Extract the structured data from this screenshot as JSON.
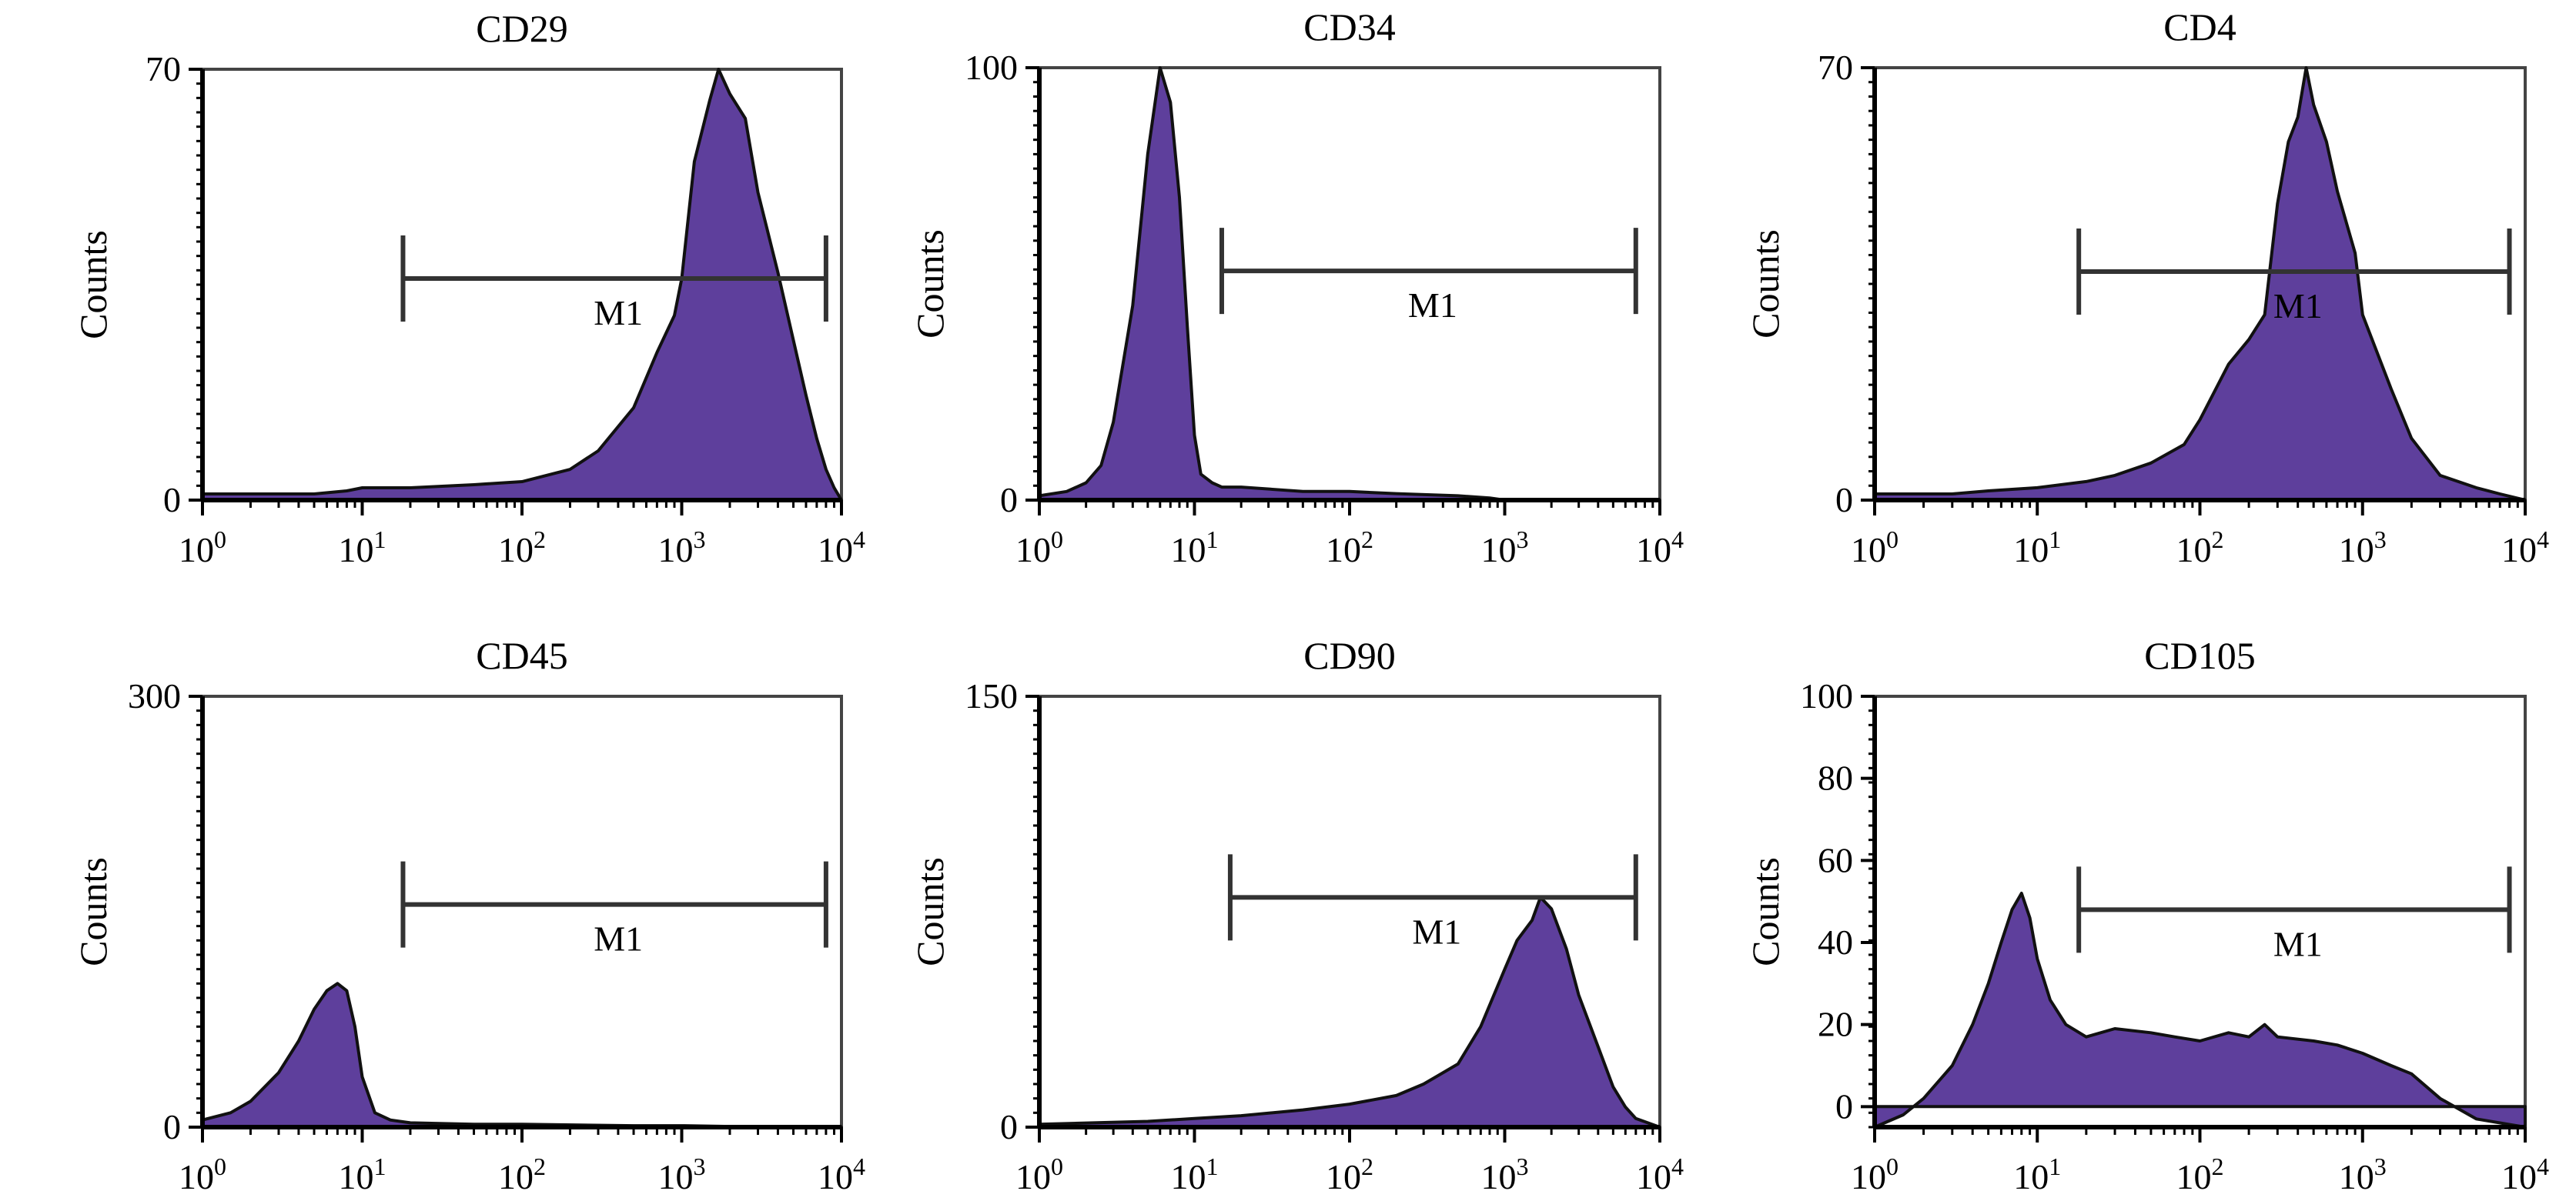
{
  "colors": {
    "fill": "#5e3f9c",
    "outline": "#111111",
    "axis": "#000000",
    "frame": "#444444",
    "gate": "#333333"
  },
  "x_ticks": [
    {
      "base": "10",
      "exp": "0",
      "value": 1
    },
    {
      "base": "10",
      "exp": "1",
      "value": 10
    },
    {
      "base": "10",
      "exp": "2",
      "value": 100
    },
    {
      "base": "10",
      "exp": "3",
      "value": 1000
    },
    {
      "base": "10",
      "exp": "4",
      "value": 10000
    }
  ],
  "chart_data": [
    {
      "type": "area",
      "title": "CD29",
      "xlabel": "",
      "ylabel": "Counts",
      "x_scale": "log",
      "xlim": [
        1,
        10000
      ],
      "ylim": [
        0,
        70
      ],
      "y_ticks": [
        {
          "label": "0",
          "value": 0
        },
        {
          "label": "70",
          "value": 70
        }
      ],
      "gate": {
        "label": "M1",
        "x_start": 18,
        "x_end": 8000,
        "y": 36
      },
      "x": [
        1,
        2,
        3,
        5,
        8,
        10,
        20,
        50,
        100,
        200,
        300,
        500,
        700,
        900,
        1000,
        1200,
        1500,
        1700,
        2000,
        2500,
        3000,
        4000,
        5000,
        6000,
        7000,
        8000,
        9000,
        10000
      ],
      "values": [
        1,
        1,
        1,
        1,
        1.5,
        2,
        2,
        2.5,
        3,
        5,
        8,
        15,
        24,
        30,
        36,
        55,
        65,
        70,
        66,
        62,
        50,
        37,
        26,
        17,
        10,
        5,
        2,
        0
      ]
    },
    {
      "type": "area",
      "title": "CD34",
      "xlabel": "",
      "ylabel": "Counts",
      "x_scale": "log",
      "xlim": [
        1,
        10000
      ],
      "ylim": [
        0,
        100
      ],
      "y_ticks": [
        {
          "label": "0",
          "value": 0
        },
        {
          "label": "100",
          "value": 100
        }
      ],
      "gate": {
        "label": "M1",
        "x_start": 15,
        "x_end": 7000,
        "y": 53
      },
      "x": [
        1,
        1.5,
        2,
        2.5,
        3,
        4,
        5,
        6,
        7,
        8,
        9,
        10,
        11,
        13,
        15,
        20,
        50,
        100,
        200,
        500,
        800,
        1000,
        10000
      ],
      "values": [
        1,
        2,
        4,
        8,
        18,
        45,
        80,
        100,
        92,
        70,
        40,
        15,
        6,
        4,
        3,
        3,
        2,
        2,
        1.5,
        1,
        0.5,
        0,
        0
      ]
    },
    {
      "type": "area",
      "title": "CD4",
      "xlabel": "",
      "ylabel": "Counts",
      "x_scale": "log",
      "xlim": [
        1,
        10000
      ],
      "ylim": [
        0,
        70
      ],
      "y_ticks": [
        {
          "label": "0",
          "value": 0
        },
        {
          "label": "70",
          "value": 70
        }
      ],
      "gate": {
        "label": "M1",
        "x_start": 18,
        "x_end": 8000,
        "y": 37
      },
      "x": [
        1,
        3,
        5,
        10,
        20,
        30,
        50,
        80,
        100,
        150,
        200,
        250,
        300,
        350,
        400,
        450,
        500,
        600,
        700,
        900,
        1000,
        1500,
        2000,
        3000,
        5000,
        7000,
        10000
      ],
      "values": [
        1,
        1,
        1.5,
        2,
        3,
        4,
        6,
        9,
        13,
        22,
        26,
        30,
        48,
        58,
        62,
        70,
        64,
        58,
        50,
        40,
        30,
        18,
        10,
        4,
        2,
        1,
        0
      ]
    },
    {
      "type": "area",
      "title": "CD45",
      "xlabel": "",
      "ylabel": "Counts",
      "x_scale": "log",
      "xlim": [
        1,
        10000
      ],
      "ylim": [
        0,
        300
      ],
      "y_ticks": [
        {
          "label": "0",
          "value": 0
        },
        {
          "label": "300",
          "value": 300
        }
      ],
      "gate": {
        "label": "M1",
        "x_start": 18,
        "x_end": 8000,
        "y": 155
      },
      "x": [
        1,
        1.5,
        2,
        3,
        4,
        5,
        6,
        7,
        8,
        9,
        10,
        12,
        15,
        20,
        50,
        100,
        500,
        1000,
        2000,
        10000
      ],
      "values": [
        5,
        10,
        18,
        38,
        60,
        82,
        95,
        100,
        95,
        70,
        35,
        10,
        5,
        3,
        2,
        2,
        1,
        1,
        0.5,
        0
      ]
    },
    {
      "type": "area",
      "title": "CD90",
      "xlabel": "",
      "ylabel": "Counts",
      "x_scale": "log",
      "xlim": [
        1,
        10000
      ],
      "ylim": [
        0,
        150
      ],
      "y_ticks": [
        {
          "label": "0",
          "value": 0
        },
        {
          "label": "150",
          "value": 150
        }
      ],
      "gate": {
        "label": "M1",
        "x_start": 17,
        "x_end": 7000,
        "y": 80
      },
      "x": [
        1,
        5,
        10,
        20,
        50,
        100,
        200,
        300,
        500,
        700,
        1000,
        1200,
        1500,
        1700,
        2000,
        2500,
        3000,
        4000,
        5000,
        6000,
        7000,
        10000
      ],
      "values": [
        1,
        2,
        3,
        4,
        6,
        8,
        11,
        15,
        22,
        35,
        55,
        65,
        72,
        80,
        76,
        62,
        46,
        28,
        14,
        7,
        3,
        0
      ]
    },
    {
      "type": "area",
      "title": "CD105",
      "xlabel": "",
      "ylabel": "Counts",
      "x_scale": "log",
      "xlim": [
        1,
        10000
      ],
      "ylim": [
        -5,
        100
      ],
      "y_ticks": [
        {
          "label": "0",
          "value": 0
        },
        {
          "label": "20",
          "value": 20
        },
        {
          "label": "40",
          "value": 40
        },
        {
          "label": "60",
          "value": 60
        },
        {
          "label": "80",
          "value": 80
        },
        {
          "label": "100",
          "value": 100
        }
      ],
      "gate": {
        "label": "M1",
        "x_start": 18,
        "x_end": 8000,
        "y": 48
      },
      "x": [
        1,
        1.5,
        2,
        3,
        4,
        5,
        6,
        7,
        8,
        9,
        10,
        12,
        15,
        20,
        30,
        50,
        70,
        100,
        150,
        200,
        250,
        300,
        500,
        700,
        1000,
        1500,
        2000,
        3000,
        5000,
        10000
      ],
      "values": [
        -5,
        -2,
        2,
        10,
        20,
        30,
        40,
        48,
        52,
        46,
        36,
        26,
        20,
        17,
        19,
        18,
        17,
        16,
        18,
        17,
        20,
        17,
        16,
        15,
        13,
        10,
        8,
        2,
        -3,
        -5
      ]
    }
  ]
}
